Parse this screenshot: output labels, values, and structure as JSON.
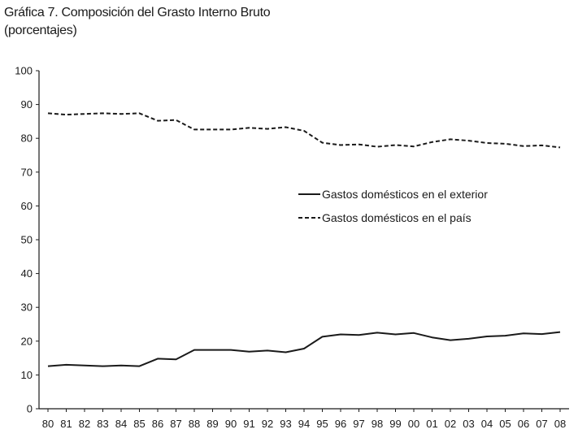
{
  "chart_data": {
    "type": "line",
    "title": "Gráfica 7. Composición del Grasto Interno Bruto",
    "subtitle": "(porcentajes)",
    "categories": [
      "80",
      "81",
      "82",
      "83",
      "84",
      "85",
      "86",
      "87",
      "88",
      "89",
      "90",
      "91",
      "92",
      "93",
      "94",
      "95",
      "96",
      "97",
      "98",
      "99",
      "00",
      "01",
      "02",
      "03",
      "04",
      "05",
      "06",
      "07",
      "08"
    ],
    "ylim": [
      0,
      100
    ],
    "yticks": [
      0,
      10,
      20,
      30,
      40,
      50,
      60,
      70,
      80,
      90,
      100
    ],
    "legend_position": "center-right",
    "series": [
      {
        "name": "Gastos domésticos en el exterior",
        "style": "solid",
        "color": "#1a1a1a",
        "values": [
          12.6,
          13.0,
          12.8,
          12.6,
          12.8,
          12.6,
          14.8,
          14.6,
          17.4,
          17.4,
          17.4,
          16.9,
          17.2,
          16.7,
          17.8,
          21.3,
          22.0,
          21.8,
          22.5,
          22.0,
          22.4,
          21.1,
          20.3,
          20.7,
          21.4,
          21.6,
          22.3,
          22.1,
          22.7
        ]
      },
      {
        "name": "Gastos domésticos en el país",
        "style": "dashed",
        "color": "#1a1a1a",
        "values": [
          87.4,
          87.0,
          87.2,
          87.4,
          87.2,
          87.4,
          85.2,
          85.4,
          82.6,
          82.6,
          82.6,
          83.1,
          82.8,
          83.3,
          82.2,
          78.7,
          78.0,
          78.2,
          77.5,
          78.0,
          77.6,
          78.9,
          79.7,
          79.3,
          78.6,
          78.4,
          77.7,
          77.9,
          77.3
        ]
      }
    ]
  }
}
